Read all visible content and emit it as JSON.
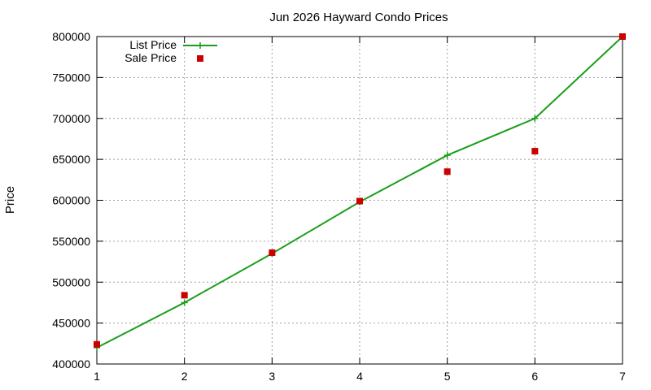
{
  "chart_data": {
    "type": "line",
    "title": "Jun 2026 Hayward Condo Prices",
    "xlabel": "",
    "ylabel": "Price",
    "xlim": [
      1,
      7
    ],
    "ylim": [
      400000,
      800000
    ],
    "x_ticks": [
      "1",
      "2",
      "3",
      "4",
      "5",
      "6",
      "7"
    ],
    "y_ticks": [
      "400000",
      "450000",
      "500000",
      "550000",
      "600000",
      "650000",
      "700000",
      "750000",
      "800000"
    ],
    "grid": true,
    "legend_position": "top-left",
    "series": [
      {
        "name": "List Price",
        "style": "line+cross",
        "color": "#1a9e1a",
        "x": [
          1,
          2,
          3,
          4,
          5,
          6,
          7
        ],
        "y": [
          420000,
          475000,
          535000,
          598000,
          655000,
          700000,
          800000
        ]
      },
      {
        "name": "Sale Price",
        "style": "square",
        "color": "#cc0000",
        "x": [
          1,
          2,
          3,
          4,
          5,
          6,
          7
        ],
        "y": [
          424000,
          484000,
          536000,
          599000,
          635000,
          660000,
          800000
        ]
      }
    ]
  }
}
